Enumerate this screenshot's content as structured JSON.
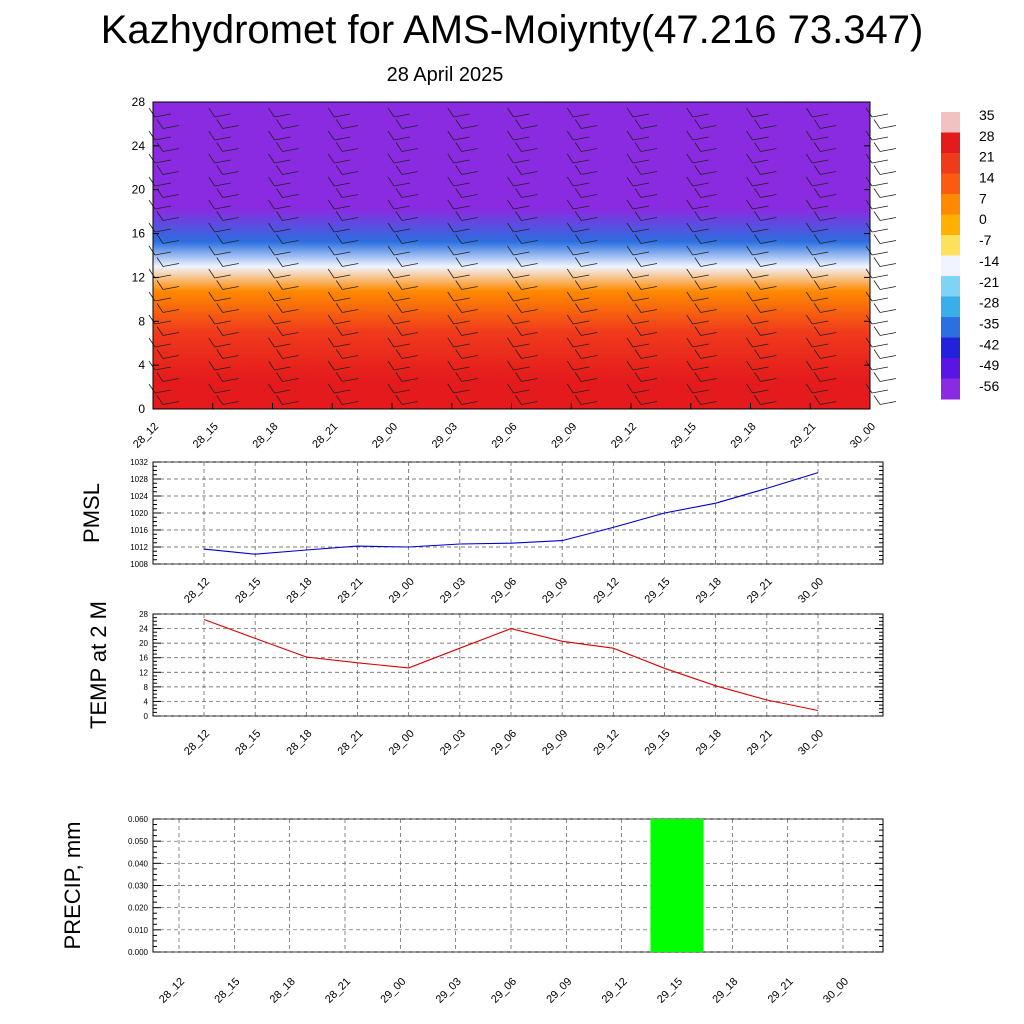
{
  "header": {
    "title": "Kazhydromet for AMS-Moiynty(47.216 73.347)",
    "subtitle": "28 April 2025"
  },
  "chart_data": [
    {
      "type": "heatmap",
      "y_ticks": [
        0,
        4,
        8,
        12,
        16,
        20,
        24,
        28
      ],
      "ylim": [
        0,
        28
      ],
      "x_ticks": [
        "28_12",
        "28_15",
        "28_18",
        "28_21",
        "29_00",
        "29_03",
        "29_06",
        "29_09",
        "29_12",
        "29_15",
        "29_18",
        "29_21",
        "30_00"
      ],
      "colorbar": {
        "labels": [
          "35",
          "28",
          "21",
          "14",
          "7",
          "0",
          "-7",
          "-14",
          "-21",
          "-28",
          "-35",
          "-42",
          "-49",
          "-56"
        ],
        "colors": [
          "#f2c2c2",
          "#e41a1c",
          "#f03a1c",
          "#fb5a10",
          "#ff8a00",
          "#ffb000",
          "#ffe05a",
          "#f0f4ff",
          "#7fd4f5",
          "#3aaee8",
          "#2b6fe0",
          "#2222dd",
          "#5a14e6",
          "#8a2be2"
        ]
      },
      "layers": [
        {
          "height_min": 0,
          "height_max": 5,
          "value": 28
        },
        {
          "height_min": 5,
          "height_max": 9,
          "value": 21
        },
        {
          "height_min": 9,
          "height_max": 12.5,
          "value": 7
        },
        {
          "height_min": 12.5,
          "height_max": 13.5,
          "value": -14
        },
        {
          "height_min": 13.5,
          "height_max": 17,
          "value": -35
        },
        {
          "height_min": 17,
          "height_max": 19.5,
          "value": -56
        },
        {
          "height_min": 19.5,
          "height_max": 28,
          "value": -56
        }
      ]
    },
    {
      "type": "line",
      "ylabel": "PMSL",
      "x": [
        "28_12",
        "28_15",
        "28_18",
        "28_21",
        "29_00",
        "29_03",
        "29_06",
        "29_09",
        "29_12",
        "29_15",
        "29_18",
        "29_21",
        "30_00"
      ],
      "y_ticks": [
        1008,
        1012,
        1016,
        1020,
        1024,
        1028,
        1032
      ],
      "ylim": [
        1008,
        1032
      ],
      "series": [
        {
          "values": [
            1011.5,
            1010.3,
            1011.3,
            1012.2,
            1012.0,
            1012.7,
            1012.9,
            1013.5,
            1016.6,
            1020.0,
            1022.3,
            1025.8,
            1029.5
          ],
          "color": "#0000cc"
        }
      ]
    },
    {
      "type": "line",
      "ylabel": "TEMP at 2 M",
      "x": [
        "28_12",
        "28_15",
        "28_18",
        "28_21",
        "29_00",
        "29_03",
        "29_06",
        "29_09",
        "29_12",
        "29_15",
        "29_18",
        "29_21",
        "30_00"
      ],
      "y_ticks": [
        0,
        4,
        8,
        12,
        16,
        20,
        24,
        28
      ],
      "ylim": [
        0,
        28
      ],
      "series": [
        {
          "values": [
            26.5,
            21.3,
            16.2,
            14.6,
            13.2,
            18.6,
            24.0,
            20.5,
            18.6,
            13.1,
            8.3,
            4.4,
            1.5
          ],
          "color": "#dd0000"
        }
      ]
    },
    {
      "type": "bar",
      "ylabel": "PRECIP, mm",
      "categories": [
        "28_12",
        "28_15",
        "28_18",
        "28_21",
        "29_00",
        "29_03",
        "29_06",
        "29_09",
        "29_12",
        "29_15",
        "29_18",
        "29_21",
        "30_00"
      ],
      "values": [
        0,
        0,
        0,
        0,
        0,
        0,
        0,
        0,
        0,
        0.06,
        0,
        0,
        0
      ],
      "y_ticks": [
        "0.000",
        "0.010",
        "0.020",
        "0.030",
        "0.040",
        "0.050",
        "0.060"
      ],
      "ylim": [
        0,
        0.06
      ],
      "bar_color": "#00ff00"
    }
  ]
}
